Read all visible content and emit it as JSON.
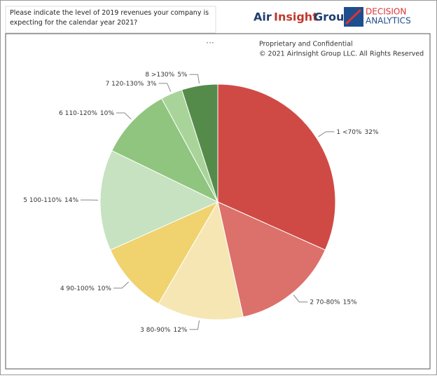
{
  "chart_data": {
    "type": "pie",
    "title": "Please indicate the level of 2019 revenues your company is expecting for the calendar year 2021?",
    "notes": [
      "Proprietary and Confidential",
      "© 2021 AirInsight Group LLC. All Rights Reserved"
    ],
    "categories": [
      "1 <70%",
      "2 70-80%",
      "3 80-90%",
      "4 90-100%",
      "5 100-110%",
      "6 110-120%",
      "7 120-130%",
      "8 >130%"
    ],
    "values": [
      32,
      15,
      12,
      10,
      14,
      10,
      3,
      5
    ],
    "value_labels": [
      "32%",
      "15%",
      "12%",
      "10%",
      "14%",
      "10%",
      "3%",
      "5%"
    ],
    "colors": [
      "#d04a45",
      "#dc706a",
      "#f6e6b4",
      "#f0d26e",
      "#c6e2c0",
      "#8fc57e",
      "#a8d49a",
      "#558b4a"
    ]
  },
  "branding": {
    "air": "Air",
    "insight": "Insight",
    "group": "Group",
    "decision": "DECISION",
    "analytics": "ANALYTICS"
  }
}
